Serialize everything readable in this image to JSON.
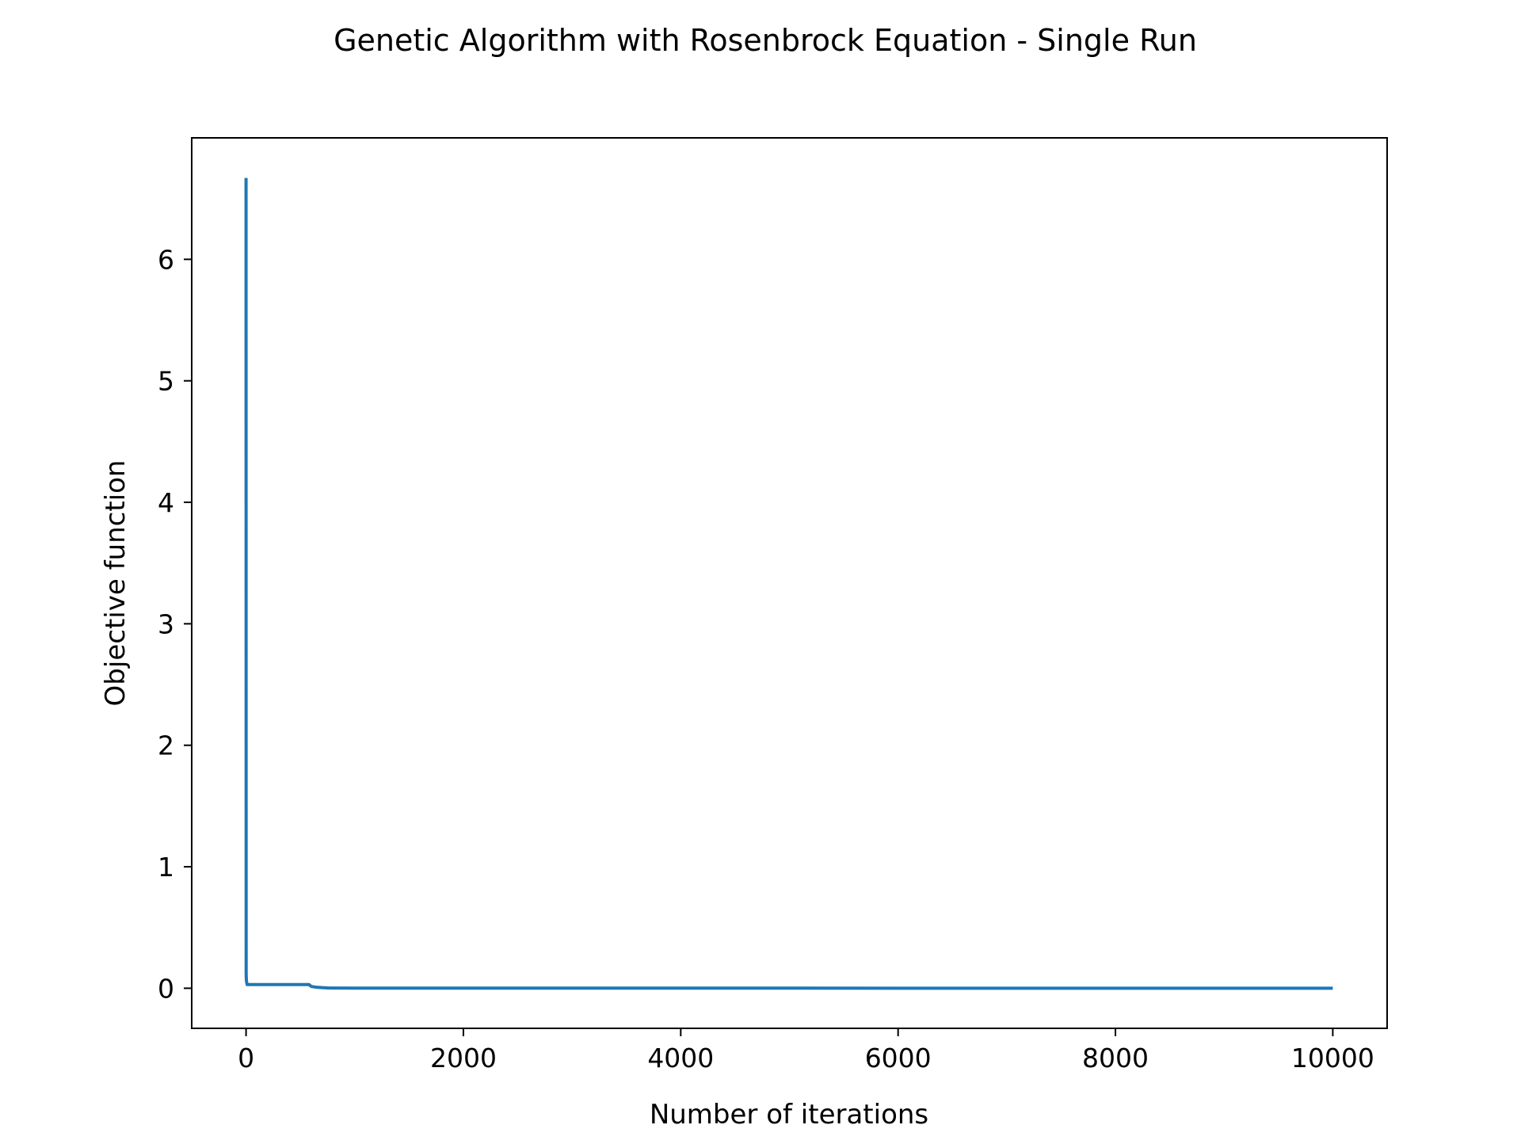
{
  "chart_data": {
    "type": "line",
    "title": "Genetic Algorithm with Rosenbrock Equation - Single Run",
    "xlabel": "Number of iterations",
    "ylabel": "Objective function",
    "xlim": [
      -500,
      10500
    ],
    "ylim": [
      -0.33,
      7.0
    ],
    "xticks": [
      0,
      2000,
      4000,
      6000,
      8000,
      10000
    ],
    "yticks": [
      0,
      1,
      2,
      3,
      4,
      5,
      6
    ],
    "grid": false,
    "legend": "none",
    "series": [
      {
        "color": "#1f77b4",
        "x": [
          0,
          1,
          2,
          3,
          5,
          8,
          10,
          20,
          50,
          100,
          200,
          300,
          400,
          500,
          580,
          600,
          620,
          650,
          700,
          750,
          800,
          1000,
          2000,
          4000,
          6000,
          8000,
          10000
        ],
        "y": [
          6.67,
          0.12,
          0.09,
          0.07,
          0.05,
          0.04,
          0.03,
          0.03,
          0.03,
          0.03,
          0.03,
          0.03,
          0.03,
          0.03,
          0.03,
          0.015,
          0.012,
          0.008,
          0.005,
          0.003,
          0.002,
          0.001,
          0.001,
          0.001,
          0.0005,
          0.0005,
          0.0005
        ]
      }
    ]
  }
}
